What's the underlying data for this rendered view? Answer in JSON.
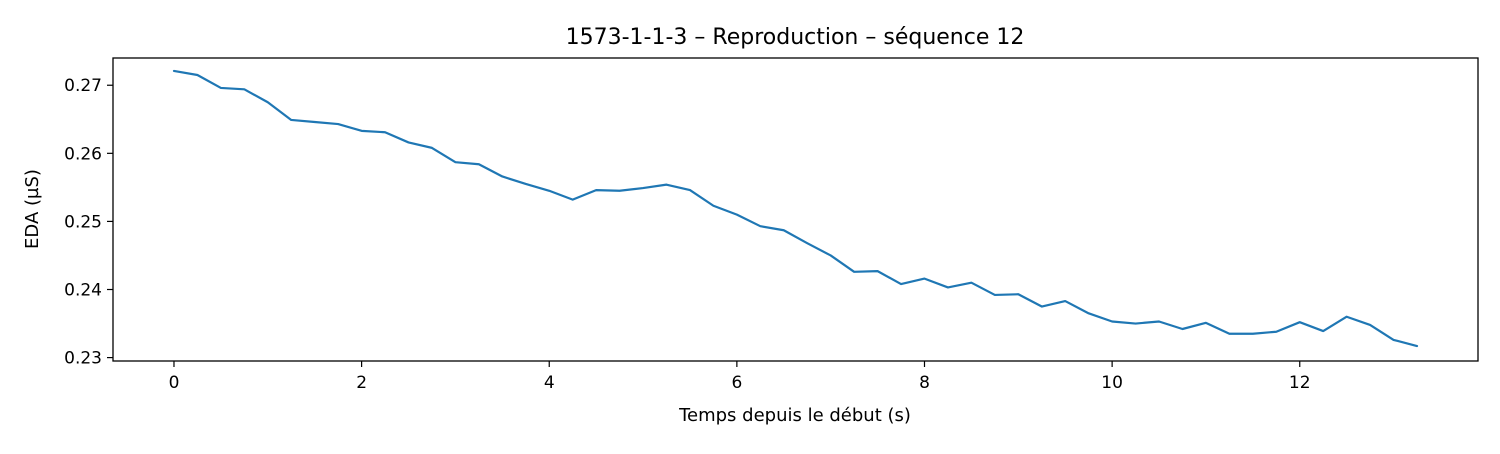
{
  "chart_data": {
    "type": "line",
    "title": "1573-1-1-3 – Reproduction – séquence 12",
    "xlabel": "Temps depuis le début (s)",
    "ylabel": "EDA (µS)",
    "xlim": [
      -0.65,
      13.9
    ],
    "ylim": [
      0.2295,
      0.274
    ],
    "xticks": [
      0,
      2,
      4,
      6,
      8,
      10,
      12
    ],
    "xtick_labels": [
      "0",
      "2",
      "4",
      "6",
      "8",
      "10",
      "12"
    ],
    "yticks": [
      0.23,
      0.24,
      0.25,
      0.26,
      0.27
    ],
    "ytick_labels": [
      "0.23",
      "0.24",
      "0.25",
      "0.26",
      "0.27"
    ],
    "grid": false,
    "legend": "none",
    "series": [
      {
        "color": "#1f77b4",
        "x": [
          0,
          0.25,
          0.5,
          0.75,
          1,
          1.25,
          1.5,
          1.75,
          2,
          2.25,
          2.5,
          2.75,
          3,
          3.25,
          3.5,
          3.75,
          4,
          4.25,
          4.5,
          4.75,
          5,
          5.25,
          5.5,
          5.75,
          6,
          6.25,
          6.5,
          6.75,
          7,
          7.25,
          7.5,
          7.75,
          8,
          8.25,
          8.5,
          8.75,
          9,
          9.25,
          9.5,
          9.75,
          10,
          10.25,
          10.5,
          10.75,
          11,
          11.25,
          11.5,
          11.75,
          12,
          12.25,
          12.5,
          12.75,
          13,
          13.25
        ],
        "y": [
          0.2721,
          0.2715,
          0.2696,
          0.2694,
          0.2675,
          0.2649,
          0.2646,
          0.2643,
          0.2633,
          0.2631,
          0.2616,
          0.2608,
          0.2587,
          0.2584,
          0.2566,
          0.2555,
          0.2545,
          0.2532,
          0.2546,
          0.2545,
          0.2549,
          0.2554,
          0.2546,
          0.2523,
          0.251,
          0.2493,
          0.2487,
          0.2468,
          0.245,
          0.2426,
          0.2427,
          0.2408,
          0.2416,
          0.2403,
          0.241,
          0.2392,
          0.2393,
          0.2375,
          0.2383,
          0.2365,
          0.2353,
          0.235,
          0.2353,
          0.2342,
          0.2351,
          0.2335,
          0.2335,
          0.2338,
          0.2352,
          0.2339,
          0.236,
          0.2348,
          0.2326,
          0.2317
        ]
      }
    ]
  }
}
